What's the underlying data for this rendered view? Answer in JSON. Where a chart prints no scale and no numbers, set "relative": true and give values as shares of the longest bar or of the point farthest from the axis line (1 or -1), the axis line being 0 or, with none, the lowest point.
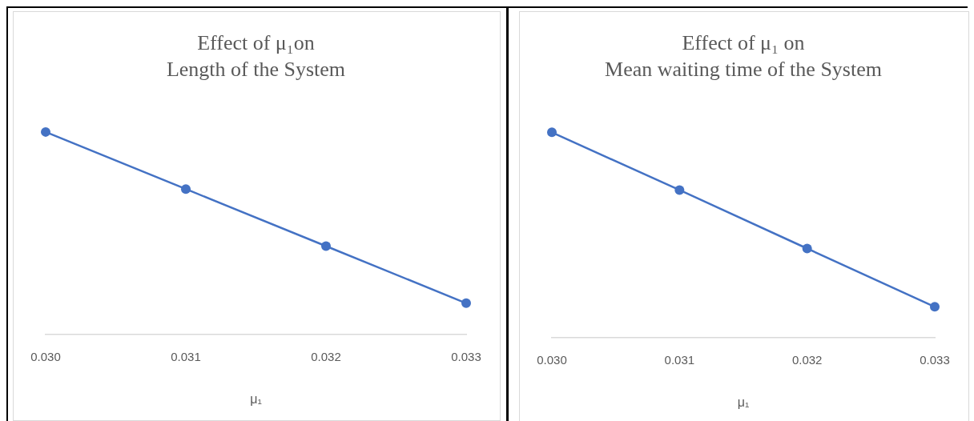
{
  "chart_data": [
    {
      "type": "line",
      "title": "Effect of μ₁on\nLength of the System",
      "xlabel": "μ₁",
      "categories": [
        "0.030",
        "0.031",
        "0.032",
        "0.033"
      ],
      "relative": true,
      "marker": "circle",
      "grid": false,
      "legend": false,
      "series": [
        {
          "color": "#4472c4",
          "values": [
            1,
            0.718,
            0.436,
            0.154
          ]
        }
      ]
    },
    {
      "type": "line",
      "title": "Effect of μ₁ on\nMean waiting time of the System",
      "xlabel": "μ₁",
      "categories": [
        "0.030",
        "0.031",
        "0.032",
        "0.033"
      ],
      "relative": true,
      "marker": "circle",
      "grid": false,
      "legend": false,
      "series": [
        {
          "color": "#4472c4",
          "values": [
            1,
            0.719,
            0.434,
            0.15
          ]
        }
      ]
    }
  ]
}
